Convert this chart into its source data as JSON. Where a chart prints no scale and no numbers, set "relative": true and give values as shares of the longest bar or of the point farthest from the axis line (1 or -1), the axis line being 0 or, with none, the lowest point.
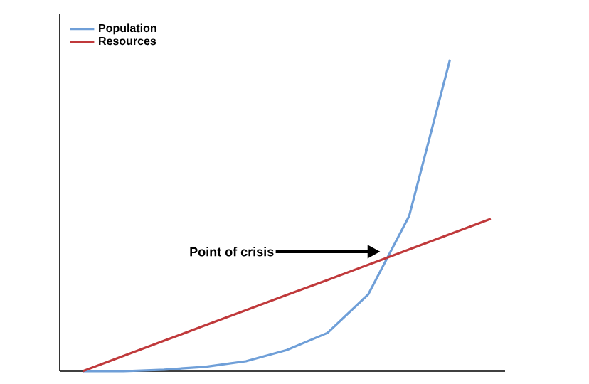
{
  "chart_data": {
    "type": "line",
    "relative": true,
    "categories": [
      null,
      null,
      null,
      null,
      null,
      null,
      null,
      null,
      null,
      null,
      null
    ],
    "series": [
      {
        "name": "Population",
        "color": "#6f9fd8",
        "values": [
          0,
          0,
          0.005,
          0.014,
          0.032,
          0.068,
          0.123,
          0.247,
          0.498,
          1.0,
          null
        ]
      },
      {
        "name": "Resources",
        "color": "#c0393b",
        "values": [
          0,
          0.049,
          0.098,
          0.147,
          0.196,
          0.245,
          0.293,
          0.342,
          0.391,
          0.44,
          0.489
        ]
      }
    ],
    "legend": "top left",
    "marker": "none",
    "annotations": [
      "Point of crisis"
    ]
  }
}
